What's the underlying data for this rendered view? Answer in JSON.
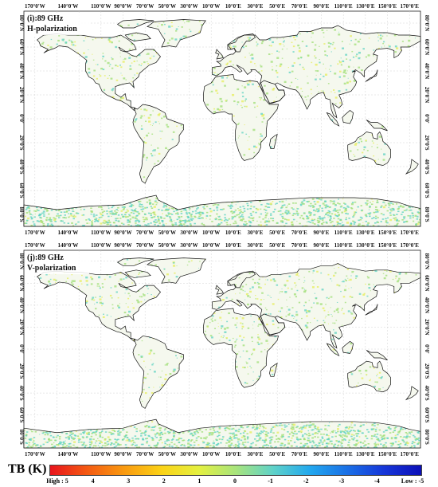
{
  "panels": [
    {
      "id": "i",
      "label_line1": "(i):89 GHz",
      "label_line2": "H-polarization"
    },
    {
      "id": "j",
      "label_line1": "(j):89 GHz",
      "label_line2": "V-polarization"
    }
  ],
  "axes": {
    "lon_ticks": [
      "170°0'W",
      "140°0'W",
      "110°0'W",
      "90°0'W",
      "70°0'W",
      "50°0'W",
      "30°0'W",
      "10°0'W",
      "10°0'E",
      "30°0'E",
      "50°0'E",
      "70°0'E",
      "90°0'E",
      "110°0'E",
      "130°0'E",
      "150°0'E",
      "170°0'E"
    ],
    "lat_ticks": [
      "80°0'N",
      "60°0'N",
      "40°0'N",
      "20°0'N",
      "0°0'",
      "20°0'S",
      "40°0'S",
      "60°0'S",
      "80°0'S"
    ]
  },
  "legend": {
    "title": "TB (K)",
    "ticks": [
      "High : 5",
      "4",
      "3",
      "2",
      "1",
      "0",
      "-1",
      "-2",
      "-3",
      "-4",
      "Low : -5"
    ],
    "colors": [
      "#e8141c",
      "#f45a12",
      "#f99a10",
      "#fbd216",
      "#e4f040",
      "#a8e47c",
      "#5fd2c8",
      "#22a8ee",
      "#1a70e6",
      "#1636d8",
      "#0c10b8"
    ]
  },
  "map_colors": {
    "land_fill": "#f5f8ee",
    "land_stroke": "#111111",
    "speckle_green": "#9fdf76",
    "speckle_teal": "#5fd3c2",
    "speckle_yellow": "#e6ee5a",
    "grid": "#c8c8c8"
  }
}
